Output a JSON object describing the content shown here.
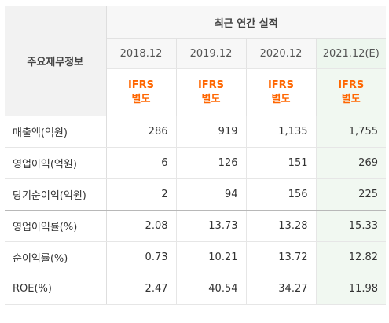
{
  "header": {
    "row_label": "주요재무정보",
    "group_title": "최근 연간 실적",
    "years": [
      "2018.12",
      "2019.12",
      "2020.12",
      "2021.12(E)"
    ],
    "standards": [
      {
        "line1": "IFRS",
        "line2": "별도"
      },
      {
        "line1": "IFRS",
        "line2": "별도"
      },
      {
        "line1": "IFRS",
        "line2": "별도"
      },
      {
        "line1": "IFRS",
        "line2": "별도"
      }
    ]
  },
  "rows": [
    {
      "label": "매출액(억원)",
      "values": [
        "286",
        "919",
        "1,135",
        "1,755"
      ]
    },
    {
      "label": "영업이익(억원)",
      "values": [
        "6",
        "126",
        "151",
        "269"
      ]
    },
    {
      "label": "당기순이익(억원)",
      "values": [
        "2",
        "94",
        "156",
        "225"
      ]
    },
    {
      "label": "영업이익률(%)",
      "values": [
        "2.08",
        "13.73",
        "13.28",
        "15.33"
      ]
    },
    {
      "label": "순이익률(%)",
      "values": [
        "0.73",
        "10.21",
        "13.72",
        "12.82"
      ]
    },
    {
      "label": "ROE(%)",
      "values": [
        "2.47",
        "40.54",
        "34.27",
        "11.98"
      ]
    }
  ],
  "colors": {
    "standard_text": "#ff6600",
    "estimate_column_bg": "#f1f8f1"
  }
}
